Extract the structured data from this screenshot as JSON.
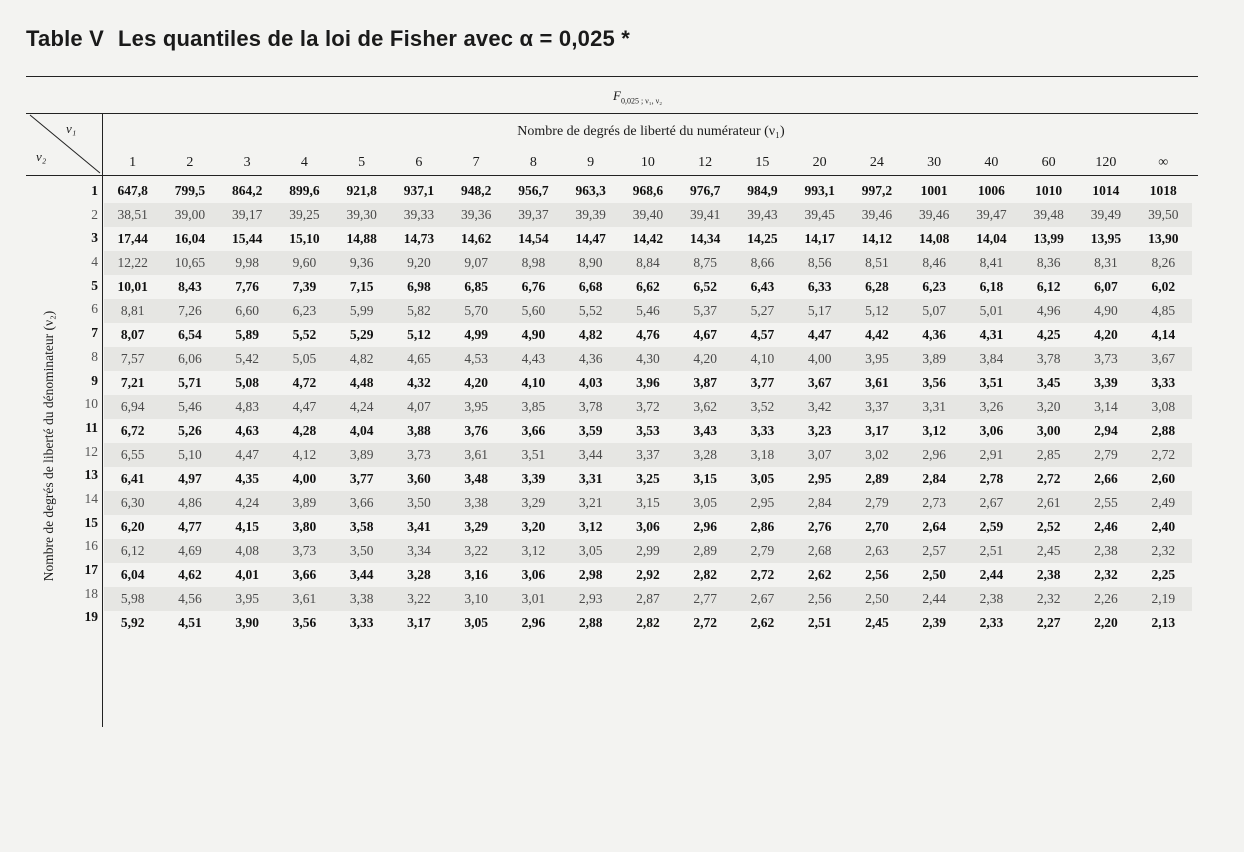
{
  "title": {
    "table_num": "Table V",
    "text": "Les quantiles de la loi de Fisher avec α = 0,025 *"
  },
  "f_header": {
    "main": "F",
    "sub": "0,025 ; ν₁, ν₂"
  },
  "corner": {
    "v1": "ν₁",
    "v2": "ν₂"
  },
  "numerator_title": "Nombre de degrés de liberté du numérateur (ν₁)",
  "denominator_title": "Nombre de degrés de liberté du dénominateur (ν₂)",
  "columns": [
    "1",
    "2",
    "3",
    "4",
    "5",
    "6",
    "7",
    "8",
    "9",
    "10",
    "12",
    "15",
    "20",
    "24",
    "30",
    "40",
    "60",
    "120",
    "∞"
  ],
  "rows": [
    {
      "v2": "1",
      "values": [
        "647,8",
        "799,5",
        "864,2",
        "899,6",
        "921,8",
        "937,1",
        "948,2",
        "956,7",
        "963,3",
        "968,6",
        "976,7",
        "984,9",
        "993,1",
        "997,2",
        "1001",
        "1006",
        "1010",
        "1014",
        "1018"
      ]
    },
    {
      "v2": "2",
      "values": [
        "38,51",
        "39,00",
        "39,17",
        "39,25",
        "39,30",
        "39,33",
        "39,36",
        "39,37",
        "39,39",
        "39,40",
        "39,41",
        "39,43",
        "39,45",
        "39,46",
        "39,46",
        "39,47",
        "39,48",
        "39,49",
        "39,50"
      ]
    },
    {
      "v2": "3",
      "values": [
        "17,44",
        "16,04",
        "15,44",
        "15,10",
        "14,88",
        "14,73",
        "14,62",
        "14,54",
        "14,47",
        "14,42",
        "14,34",
        "14,25",
        "14,17",
        "14,12",
        "14,08",
        "14,04",
        "13,99",
        "13,95",
        "13,90"
      ]
    },
    {
      "v2": "4",
      "values": [
        "12,22",
        "10,65",
        "9,98",
        "9,60",
        "9,36",
        "9,20",
        "9,07",
        "8,98",
        "8,90",
        "8,84",
        "8,75",
        "8,66",
        "8,56",
        "8,51",
        "8,46",
        "8,41",
        "8,36",
        "8,31",
        "8,26"
      ]
    },
    {
      "v2": "5",
      "values": [
        "10,01",
        "8,43",
        "7,76",
        "7,39",
        "7,15",
        "6,98",
        "6,85",
        "6,76",
        "6,68",
        "6,62",
        "6,52",
        "6,43",
        "6,33",
        "6,28",
        "6,23",
        "6,18",
        "6,12",
        "6,07",
        "6,02"
      ]
    },
    {
      "v2": "6",
      "values": [
        "8,81",
        "7,26",
        "6,60",
        "6,23",
        "5,99",
        "5,82",
        "5,70",
        "5,60",
        "5,52",
        "5,46",
        "5,37",
        "5,27",
        "5,17",
        "5,12",
        "5,07",
        "5,01",
        "4,96",
        "4,90",
        "4,85"
      ]
    },
    {
      "v2": "7",
      "values": [
        "8,07",
        "6,54",
        "5,89",
        "5,52",
        "5,29",
        "5,12",
        "4,99",
        "4,90",
        "4,82",
        "4,76",
        "4,67",
        "4,57",
        "4,47",
        "4,42",
        "4,36",
        "4,31",
        "4,25",
        "4,20",
        "4,14"
      ]
    },
    {
      "v2": "8",
      "values": [
        "7,57",
        "6,06",
        "5,42",
        "5,05",
        "4,82",
        "4,65",
        "4,53",
        "4,43",
        "4,36",
        "4,30",
        "4,20",
        "4,10",
        "4,00",
        "3,95",
        "3,89",
        "3,84",
        "3,78",
        "3,73",
        "3,67"
      ]
    },
    {
      "v2": "9",
      "values": [
        "7,21",
        "5,71",
        "5,08",
        "4,72",
        "4,48",
        "4,32",
        "4,20",
        "4,10",
        "4,03",
        "3,96",
        "3,87",
        "3,77",
        "3,67",
        "3,61",
        "3,56",
        "3,51",
        "3,45",
        "3,39",
        "3,33"
      ]
    },
    {
      "v2": "10",
      "values": [
        "6,94",
        "5,46",
        "4,83",
        "4,47",
        "4,24",
        "4,07",
        "3,95",
        "3,85",
        "3,78",
        "3,72",
        "3,62",
        "3,52",
        "3,42",
        "3,37",
        "3,31",
        "3,26",
        "3,20",
        "3,14",
        "3,08"
      ]
    },
    {
      "v2": "11",
      "values": [
        "6,72",
        "5,26",
        "4,63",
        "4,28",
        "4,04",
        "3,88",
        "3,76",
        "3,66",
        "3,59",
        "3,53",
        "3,43",
        "3,33",
        "3,23",
        "3,17",
        "3,12",
        "3,06",
        "3,00",
        "2,94",
        "2,88"
      ]
    },
    {
      "v2": "12",
      "values": [
        "6,55",
        "5,10",
        "4,47",
        "4,12",
        "3,89",
        "3,73",
        "3,61",
        "3,51",
        "3,44",
        "3,37",
        "3,28",
        "3,18",
        "3,07",
        "3,02",
        "2,96",
        "2,91",
        "2,85",
        "2,79",
        "2,72"
      ]
    },
    {
      "v2": "13",
      "values": [
        "6,41",
        "4,97",
        "4,35",
        "4,00",
        "3,77",
        "3,60",
        "3,48",
        "3,39",
        "3,31",
        "3,25",
        "3,15",
        "3,05",
        "2,95",
        "2,89",
        "2,84",
        "2,78",
        "2,72",
        "2,66",
        "2,60"
      ]
    },
    {
      "v2": "14",
      "values": [
        "6,30",
        "4,86",
        "4,24",
        "3,89",
        "3,66",
        "3,50",
        "3,38",
        "3,29",
        "3,21",
        "3,15",
        "3,05",
        "2,95",
        "2,84",
        "2,79",
        "2,73",
        "2,67",
        "2,61",
        "2,55",
        "2,49"
      ]
    },
    {
      "v2": "15",
      "values": [
        "6,20",
        "4,77",
        "4,15",
        "3,80",
        "3,58",
        "3,41",
        "3,29",
        "3,20",
        "3,12",
        "3,06",
        "2,96",
        "2,86",
        "2,76",
        "2,70",
        "2,64",
        "2,59",
        "2,52",
        "2,46",
        "2,40"
      ]
    },
    {
      "v2": "16",
      "values": [
        "6,12",
        "4,69",
        "4,08",
        "3,73",
        "3,50",
        "3,34",
        "3,22",
        "3,12",
        "3,05",
        "2,99",
        "2,89",
        "2,79",
        "2,68",
        "2,63",
        "2,57",
        "2,51",
        "2,45",
        "2,38",
        "2,32"
      ]
    },
    {
      "v2": "17",
      "values": [
        "6,04",
        "4,62",
        "4,01",
        "3,66",
        "3,44",
        "3,28",
        "3,16",
        "3,06",
        "2,98",
        "2,92",
        "2,82",
        "2,72",
        "2,62",
        "2,56",
        "2,50",
        "2,44",
        "2,38",
        "2,32",
        "2,25"
      ]
    },
    {
      "v2": "18",
      "values": [
        "5,98",
        "4,56",
        "3,95",
        "3,61",
        "3,38",
        "3,22",
        "3,10",
        "3,01",
        "2,93",
        "2,87",
        "2,77",
        "2,67",
        "2,56",
        "2,50",
        "2,44",
        "2,38",
        "2,32",
        "2,26",
        "2,19"
      ]
    },
    {
      "v2": "19",
      "values": [
        "5,92",
        "4,51",
        "3,90",
        "3,56",
        "3,33",
        "3,17",
        "3,05",
        "2,96",
        "2,88",
        "2,82",
        "2,72",
        "2,62",
        "2,51",
        "2,45",
        "2,39",
        "2,33",
        "2,27",
        "2,20",
        "2,13"
      ]
    }
  ]
}
